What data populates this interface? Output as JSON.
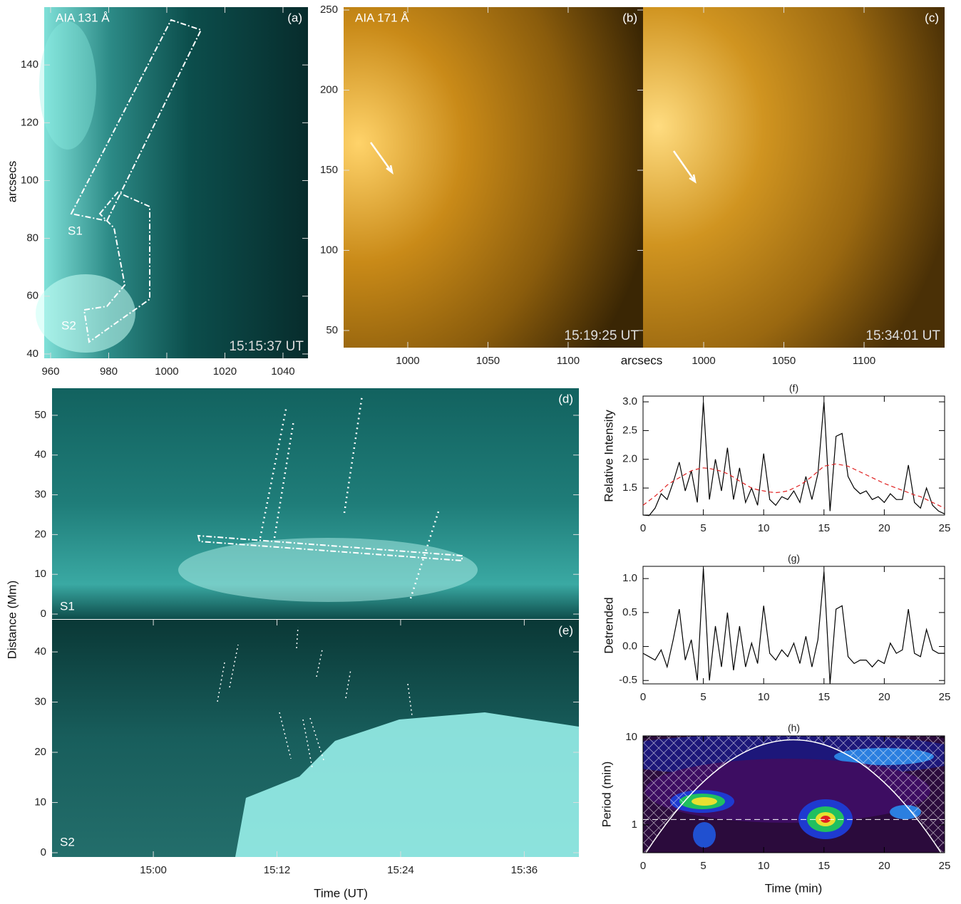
{
  "chart_data": [
    {
      "type": "image",
      "panel": "(a)",
      "instrument": "AIA 131 Å",
      "timestamp": "15:15:37 UT",
      "annotations": [
        "S1",
        "S2"
      ],
      "ylabel": "arcsecs",
      "xlim": [
        957.8,
        1048.6
      ],
      "xticks": [
        960,
        980,
        1000,
        1020,
        1040
      ],
      "ylim": [
        38.5,
        160
      ],
      "yticks": [
        40,
        60,
        80,
        100,
        120,
        140
      ]
    },
    {
      "type": "image",
      "panel": "(b)",
      "instrument": "AIA 171 Å",
      "timestamp": "15:19:25 UT",
      "xlabel": "arcsecs",
      "xlim": [
        960,
        1146.7
      ],
      "xticks": [
        1000,
        1050,
        1100
      ],
      "ylim": [
        39.3,
        251.8
      ],
      "yticks": [
        50,
        100,
        150,
        200,
        250
      ]
    },
    {
      "type": "image",
      "panel": "(c)",
      "timestamp": "15:34:01 UT",
      "xlim": [
        962.2,
        1150.2
      ],
      "xticks": [
        1000,
        1050,
        1100
      ],
      "ylim": [
        39.3,
        251.8
      ]
    },
    {
      "type": "image",
      "panel": "(d)",
      "annotations": [
        "S1"
      ],
      "ylabel": "Distance (Mm)",
      "xlim": [
        50.17,
        101.3
      ],
      "ylim": [
        -1.25,
        56.8
      ],
      "yticks": [
        0,
        10,
        20,
        30,
        40,
        50
      ]
    },
    {
      "type": "image",
      "panel": "(e)",
      "annotations": [
        "S2"
      ],
      "xlabel": "Time (UT)",
      "xlim": [
        50.17,
        101.3
      ],
      "xticks": [
        {
          "value": 60,
          "label": "15:00"
        },
        {
          "value": 72,
          "label": "15:12"
        },
        {
          "value": 84,
          "label": "15:24"
        },
        {
          "value": 96,
          "label": "15:36"
        }
      ],
      "ylim": [
        -0.85,
        46.4
      ],
      "yticks": [
        0,
        10,
        20,
        30,
        40
      ]
    },
    {
      "type": "line",
      "title": "(f)",
      "ylabel": "Relative Intensity",
      "x": [
        0,
        0.5,
        1,
        1.5,
        2,
        2.5,
        3,
        3.5,
        4,
        4.5,
        5,
        5.5,
        6,
        6.5,
        7,
        7.5,
        8,
        8.5,
        9,
        9.5,
        10,
        10.5,
        11,
        11.5,
        12,
        12.5,
        13,
        13.5,
        14,
        14.5,
        15,
        15.5,
        16,
        16.5,
        17,
        17.5,
        18,
        18.5,
        19,
        19.5,
        20,
        20.5,
        21,
        21.5,
        22,
        22.5,
        23,
        23.5,
        24,
        24.5,
        25
      ],
      "series": [
        {
          "color": "#000000",
          "linestyle": "solid",
          "values": [
            1.03,
            1.02,
            1.15,
            1.4,
            1.3,
            1.6,
            1.95,
            1.45,
            1.8,
            1.25,
            3.0,
            1.3,
            2.0,
            1.45,
            2.2,
            1.3,
            1.85,
            1.25,
            1.5,
            1.2,
            2.1,
            1.3,
            1.2,
            1.35,
            1.3,
            1.45,
            1.25,
            1.7,
            1.3,
            1.75,
            3.0,
            1.1,
            2.4,
            2.45,
            1.7,
            1.5,
            1.4,
            1.45,
            1.3,
            1.35,
            1.25,
            1.4,
            1.3,
            1.3,
            1.9,
            1.25,
            1.15,
            1.5,
            1.2,
            1.1,
            1.05
          ]
        },
        {
          "color": "#e02020",
          "linestyle": "dashed",
          "values": [
            1.2,
            1.28,
            1.36,
            1.45,
            1.55,
            1.62,
            1.68,
            1.74,
            1.8,
            1.83,
            1.85,
            1.84,
            1.82,
            1.79,
            1.75,
            1.69,
            1.62,
            1.56,
            1.5,
            1.47,
            1.45,
            1.43,
            1.42,
            1.43,
            1.45,
            1.5,
            1.55,
            1.62,
            1.7,
            1.79,
            1.88,
            1.9,
            1.92,
            1.9,
            1.88,
            1.83,
            1.78,
            1.73,
            1.68,
            1.63,
            1.58,
            1.54,
            1.5,
            1.46,
            1.42,
            1.38,
            1.35,
            1.3,
            1.25,
            1.2,
            1.15
          ]
        }
      ],
      "xlim": [
        0,
        25
      ],
      "xticks": [
        0,
        5,
        10,
        15,
        20,
        25
      ],
      "ylim": [
        1.03,
        3.1
      ],
      "yticks": [
        1.5,
        {
          "value": 2,
          "label": "2.0"
        },
        2.5,
        {
          "value": 3,
          "label": "3.0"
        }
      ]
    },
    {
      "type": "line",
      "title": "(g)",
      "ylabel": "Detrended",
      "x": [
        0,
        0.5,
        1,
        1.5,
        2,
        2.5,
        3,
        3.5,
        4,
        4.5,
        5,
        5.5,
        6,
        6.5,
        7,
        7.5,
        8,
        8.5,
        9,
        9.5,
        10,
        10.5,
        11,
        11.5,
        12,
        12.5,
        13,
        13.5,
        14,
        14.5,
        15,
        15.5,
        16,
        16.5,
        17,
        17.5,
        18,
        18.5,
        19,
        19.5,
        20,
        20.5,
        21,
        21.5,
        22,
        22.5,
        23,
        23.5,
        24,
        24.5,
        25
      ],
      "series": [
        {
          "color": "#000000",
          "linestyle": "solid",
          "values": [
            -0.1,
            -0.15,
            -0.2,
            -0.05,
            -0.3,
            0.1,
            0.55,
            -0.2,
            0.1,
            -0.5,
            1.15,
            -0.5,
            0.3,
            -0.3,
            0.5,
            -0.35,
            0.3,
            -0.3,
            0.05,
            -0.25,
            0.6,
            -0.1,
            -0.2,
            -0.05,
            -0.15,
            0.05,
            -0.25,
            0.15,
            -0.3,
            0.1,
            1.1,
            -0.55,
            0.55,
            0.6,
            -0.15,
            -0.25,
            -0.2,
            -0.2,
            -0.3,
            -0.2,
            -0.25,
            0.05,
            -0.1,
            -0.05,
            0.55,
            -0.1,
            -0.15,
            0.25,
            -0.05,
            -0.1,
            -0.1
          ]
        }
      ],
      "xlim": [
        0,
        25
      ],
      "xticks": [
        0,
        5,
        10,
        15,
        20,
        25
      ],
      "ylim": [
        -0.55,
        1.18
      ],
      "yticks": [
        {
          "value": -0.5,
          "label": "-0.5"
        },
        {
          "value": 0,
          "label": "0.0"
        },
        0.5,
        {
          "value": 1,
          "label": "1.0"
        }
      ]
    },
    {
      "type": "wavelet",
      "title": "(h)",
      "xlabel": "Time (min)",
      "ylabel": "Period (min)",
      "log_scale": true,
      "reference_period": 1.15,
      "xlim": [
        0,
        25
      ],
      "xticks": [
        0,
        5,
        10,
        15,
        20,
        25
      ],
      "ylim": [
        0.48,
        10.4
      ],
      "yticks": [
        1,
        10
      ]
    }
  ]
}
